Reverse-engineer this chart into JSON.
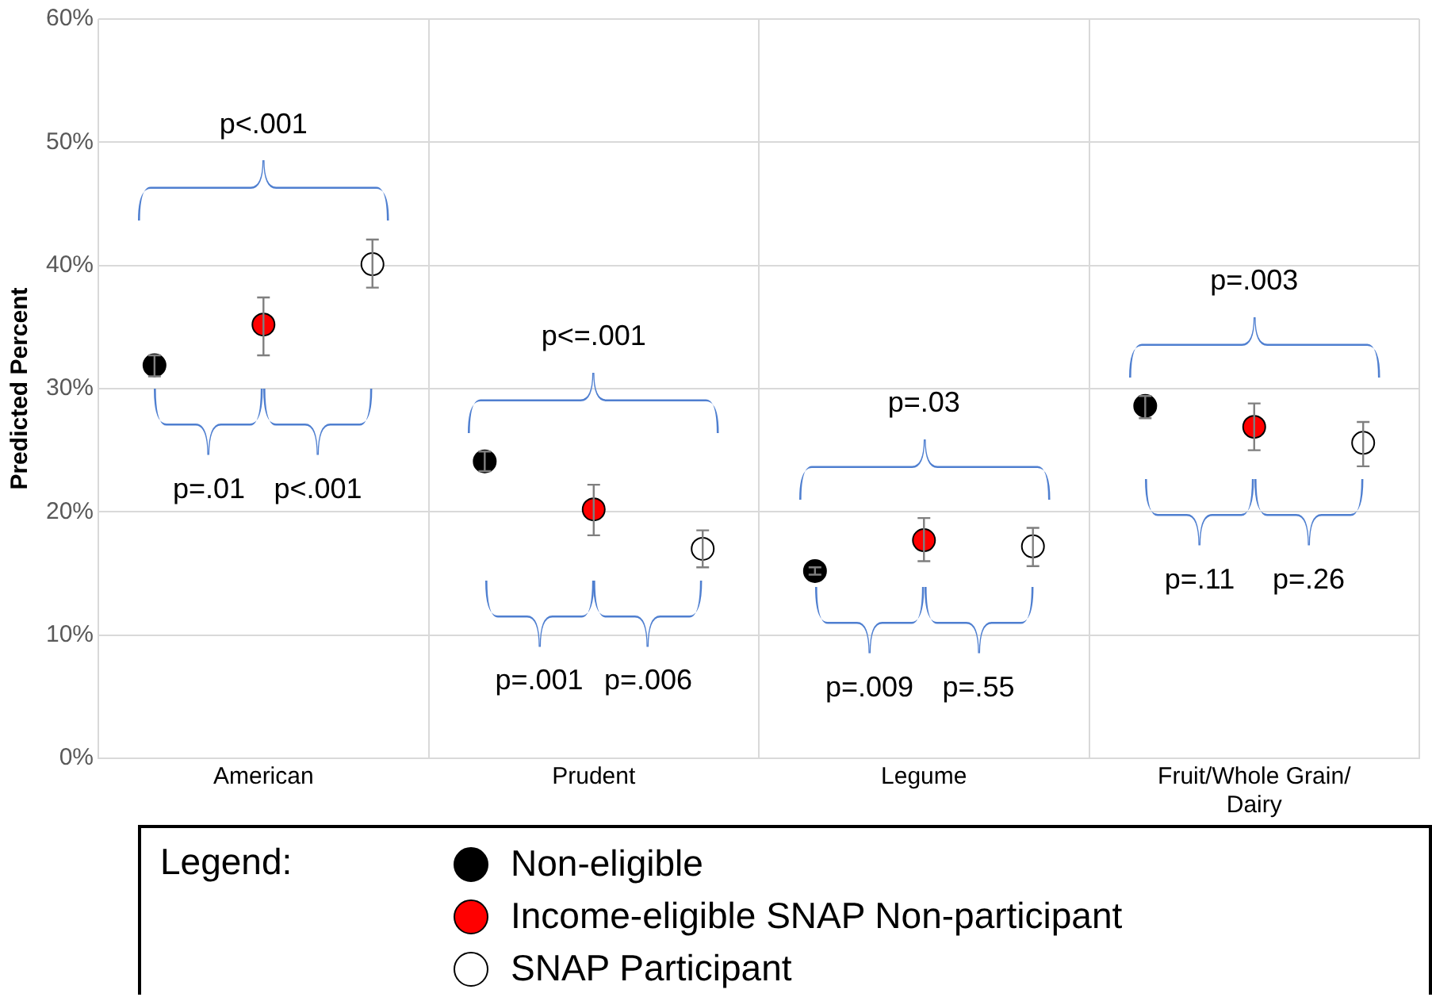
{
  "chart_data": {
    "type": "scatter",
    "ylabel": "Predicted Percent",
    "legend_title": "Legend:",
    "categories": [
      "American",
      "Prudent",
      "Legume",
      "Fruit/Whole Grain/Dairy"
    ],
    "series": [
      {
        "name": "Non-eligible",
        "color": "#000000",
        "values": [
          31.9,
          24.1,
          15.2,
          28.6
        ],
        "errors": [
          [
            31.0,
            32.7
          ],
          [
            23.3,
            24.9
          ],
          [
            14.9,
            15.5
          ],
          [
            27.6,
            29.4
          ]
        ]
      },
      {
        "name": "Income-eligible SNAP Non-participant",
        "color": "#ff0000",
        "values": [
          35.2,
          20.2,
          17.7,
          26.9
        ],
        "errors": [
          [
            32.7,
            37.4
          ],
          [
            18.1,
            22.2
          ],
          [
            16.0,
            19.5
          ],
          [
            25.0,
            28.8
          ]
        ]
      },
      {
        "name": "SNAP Participant",
        "color": "#ffffff",
        "values": [
          40.1,
          17.0,
          17.2,
          25.6
        ],
        "errors": [
          [
            38.2,
            42.1
          ],
          [
            15.5,
            18.5
          ],
          [
            15.6,
            18.7
          ],
          [
            23.7,
            27.3
          ]
        ]
      }
    ],
    "ylim": [
      0,
      60
    ],
    "yticks": [
      {
        "value": 0,
        "label": "0%"
      },
      {
        "value": 10,
        "label": "10%"
      },
      {
        "value": 20,
        "label": "20%"
      },
      {
        "value": 30,
        "label": "30%"
      },
      {
        "value": 40,
        "label": "40%"
      },
      {
        "value": 50,
        "label": "50%"
      },
      {
        "value": 60,
        "label": "60%"
      }
    ],
    "grid": true,
    "marker": "circle",
    "legend": "bottom",
    "annotations": [
      "p<.001",
      "p=.01",
      "p<.001",
      "p<=.001",
      "p=.001",
      "p=.006",
      "p=.03",
      "p=.009",
      "p=.55",
      "p=.003",
      "p=.11",
      "p=.26"
    ]
  }
}
